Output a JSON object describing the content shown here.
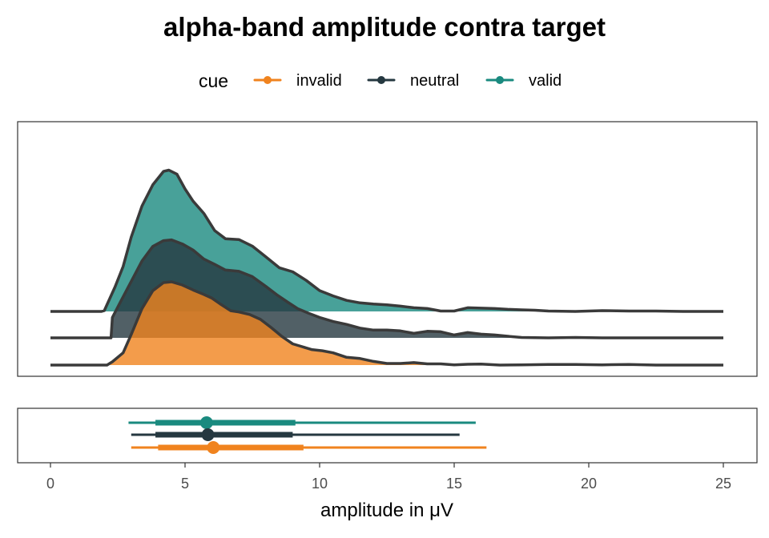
{
  "chart_data": {
    "type": "area",
    "subtype": "ridgeline-density-with-interval-summary",
    "title": "alpha-band amplitude contra target",
    "xlabel": "amplitude in μV",
    "ylabel": "",
    "xlim": [
      0,
      25
    ],
    "x_ticks": [
      0,
      5,
      10,
      15,
      20,
      25
    ],
    "legend": {
      "title": "cue",
      "position": "top"
    },
    "colors": {
      "invalid": "#f0831e",
      "neutral": "#253840",
      "valid": "#1a8a7f",
      "outline": "#3a3a3a"
    },
    "series": [
      {
        "name": "invalid",
        "color": "#f0831e",
        "density": {
          "x": [
            0,
            2.1,
            2.3,
            2.7,
            3.0,
            3.4,
            3.8,
            4.2,
            4.5,
            4.9,
            5.3,
            5.7,
            6.0,
            6.3,
            6.7,
            7.0,
            7.4,
            7.8,
            8.2,
            8.6,
            9.0,
            9.3,
            9.7,
            10.1,
            10.5,
            11.0,
            11.5,
            12.0,
            12.5,
            13.0,
            13.5,
            14.0,
            14.5,
            15.0,
            15.5,
            16.0,
            16.7,
            17.5,
            18.5,
            19.5,
            20.5,
            21.5,
            22.5,
            23.5,
            25
          ],
          "y": [
            0,
            0,
            0.08,
            0.3,
            0.75,
            1.38,
            1.82,
            2.02,
            2.04,
            1.96,
            1.84,
            1.73,
            1.64,
            1.5,
            1.33,
            1.3,
            1.24,
            1.12,
            0.92,
            0.7,
            0.52,
            0.46,
            0.38,
            0.35,
            0.3,
            0.19,
            0.16,
            0.09,
            0.04,
            0.04,
            0.06,
            0.03,
            0.03,
            0.005,
            0.02,
            0.025,
            0.0,
            0.005,
            0.015,
            0.015,
            0.005,
            0.015,
            0.0,
            0.0,
            0.0
          ]
        },
        "interval": {
          "median": 6.05,
          "inner": [
            4.0,
            9.4
          ],
          "outer": [
            3.0,
            16.2
          ]
        }
      },
      {
        "name": "neutral",
        "color": "#253840",
        "density": {
          "x": [
            0,
            2.25,
            2.3,
            2.6,
            3.0,
            3.4,
            3.8,
            4.2,
            4.5,
            4.9,
            5.3,
            5.7,
            6.1,
            6.5,
            7.0,
            7.5,
            8.0,
            8.4,
            8.8,
            9.2,
            9.6,
            10.0,
            10.5,
            11.0,
            11.5,
            12.0,
            12.5,
            13.0,
            13.5,
            14.0,
            14.5,
            15.0,
            15.5,
            16.0,
            16.5,
            17.0,
            17.5,
            18.5,
            19.5,
            20.5,
            21.5,
            22.5,
            23.5,
            25
          ],
          "y": [
            0,
            0,
            0.5,
            0.88,
            1.38,
            1.88,
            2.24,
            2.38,
            2.4,
            2.3,
            2.15,
            1.93,
            1.8,
            1.66,
            1.63,
            1.5,
            1.26,
            1.06,
            0.88,
            0.71,
            0.6,
            0.5,
            0.4,
            0.33,
            0.24,
            0.19,
            0.19,
            0.17,
            0.11,
            0.16,
            0.15,
            0.07,
            0.13,
            0.09,
            0.07,
            0.04,
            0.01,
            0.0,
            0.01,
            0.0,
            0.0,
            0.0,
            0.0,
            0.0
          ]
        },
        "interval": {
          "median": 5.85,
          "inner": [
            3.9,
            9.0
          ],
          "outer": [
            3.0,
            15.2
          ]
        }
      },
      {
        "name": "valid",
        "color": "#1a8a7f",
        "density": {
          "x": [
            0,
            1.9,
            2.0,
            2.4,
            2.7,
            3.0,
            3.4,
            3.8,
            4.2,
            4.4,
            4.7,
            5.0,
            5.3,
            5.7,
            6.1,
            6.5,
            7.0,
            7.5,
            8.0,
            8.5,
            9.0,
            9.5,
            10.0,
            10.5,
            11.0,
            11.5,
            12.0,
            12.5,
            13.0,
            13.5,
            14.0,
            14.5,
            15.0,
            15.5,
            16.0,
            16.5,
            17.0,
            17.5,
            18.0,
            18.5,
            19.5,
            20.5,
            21.5,
            22.5,
            23.5,
            25
          ],
          "y": [
            0,
            0,
            0.02,
            0.6,
            1.1,
            1.82,
            2.58,
            3.1,
            3.43,
            3.46,
            3.36,
            3.0,
            2.7,
            2.4,
            1.98,
            1.78,
            1.76,
            1.6,
            1.34,
            1.07,
            0.97,
            0.76,
            0.51,
            0.38,
            0.27,
            0.21,
            0.18,
            0.16,
            0.13,
            0.09,
            0.07,
            0.01,
            0.01,
            0.09,
            0.08,
            0.07,
            0.05,
            0.04,
            0.03,
            0.01,
            0.0,
            0.02,
            0.01,
            0.01,
            0.0,
            0.0
          ]
        },
        "interval": {
          "median": 5.8,
          "inner": [
            3.9,
            9.1
          ],
          "outer": [
            2.9,
            15.8
          ]
        }
      }
    ]
  }
}
